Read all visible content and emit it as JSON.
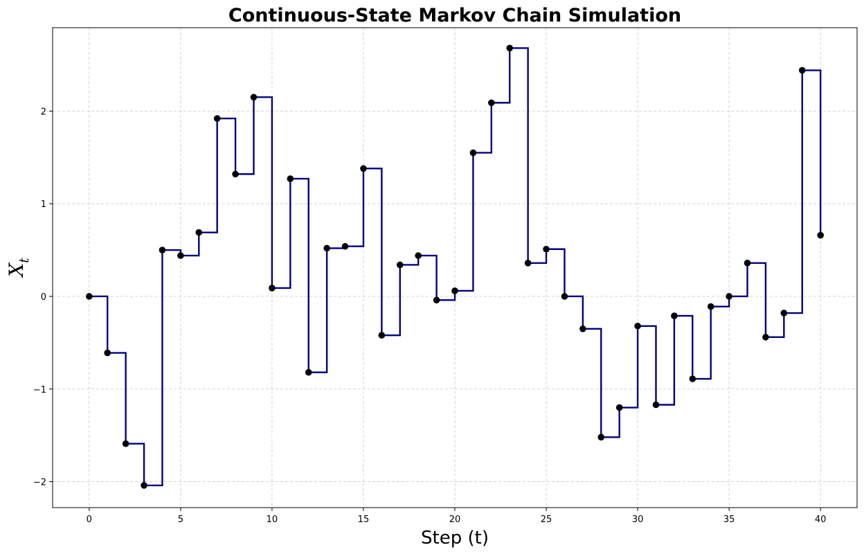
{
  "chart_data": {
    "type": "line",
    "style": "step-post",
    "title": "Continuous-State Markov Chain Simulation",
    "xlabel": "Step (t)",
    "ylabel_main": "X",
    "ylabel_sub": "t",
    "xlim": [
      -2,
      42
    ],
    "ylim": [
      -2.28,
      2.9
    ],
    "xticks": [
      0,
      5,
      10,
      15,
      20,
      25,
      30,
      35,
      40
    ],
    "yticks": [
      -2,
      -1,
      0,
      1,
      2
    ],
    "ytick_labels": [
      "−2",
      "−1",
      "0",
      "1",
      "2"
    ],
    "grid": true,
    "series": [
      {
        "x": [
          0,
          1,
          2,
          3,
          4,
          5,
          6,
          7,
          8,
          9,
          10,
          11,
          12,
          13,
          14,
          15,
          16,
          17,
          18,
          19,
          20,
          21,
          22,
          23,
          24,
          25,
          26,
          27,
          28,
          29,
          30,
          31,
          32,
          33,
          34,
          35,
          36,
          37,
          38,
          39,
          40
        ],
        "values": [
          0.0,
          -0.61,
          -1.59,
          -2.04,
          0.5,
          0.44,
          0.69,
          1.92,
          1.32,
          2.15,
          0.09,
          1.27,
          -0.82,
          0.52,
          0.54,
          1.38,
          -0.42,
          0.34,
          0.44,
          -0.04,
          0.06,
          1.55,
          2.09,
          2.68,
          0.36,
          0.51,
          0.0,
          -0.35,
          -1.52,
          -1.2,
          -0.32,
          -1.17,
          -0.21,
          -0.89,
          -0.11,
          0.0,
          0.36,
          -0.44,
          -0.18,
          2.44,
          0.66
        ],
        "line_color": "#000080",
        "marker_color": "#000000"
      }
    ]
  }
}
